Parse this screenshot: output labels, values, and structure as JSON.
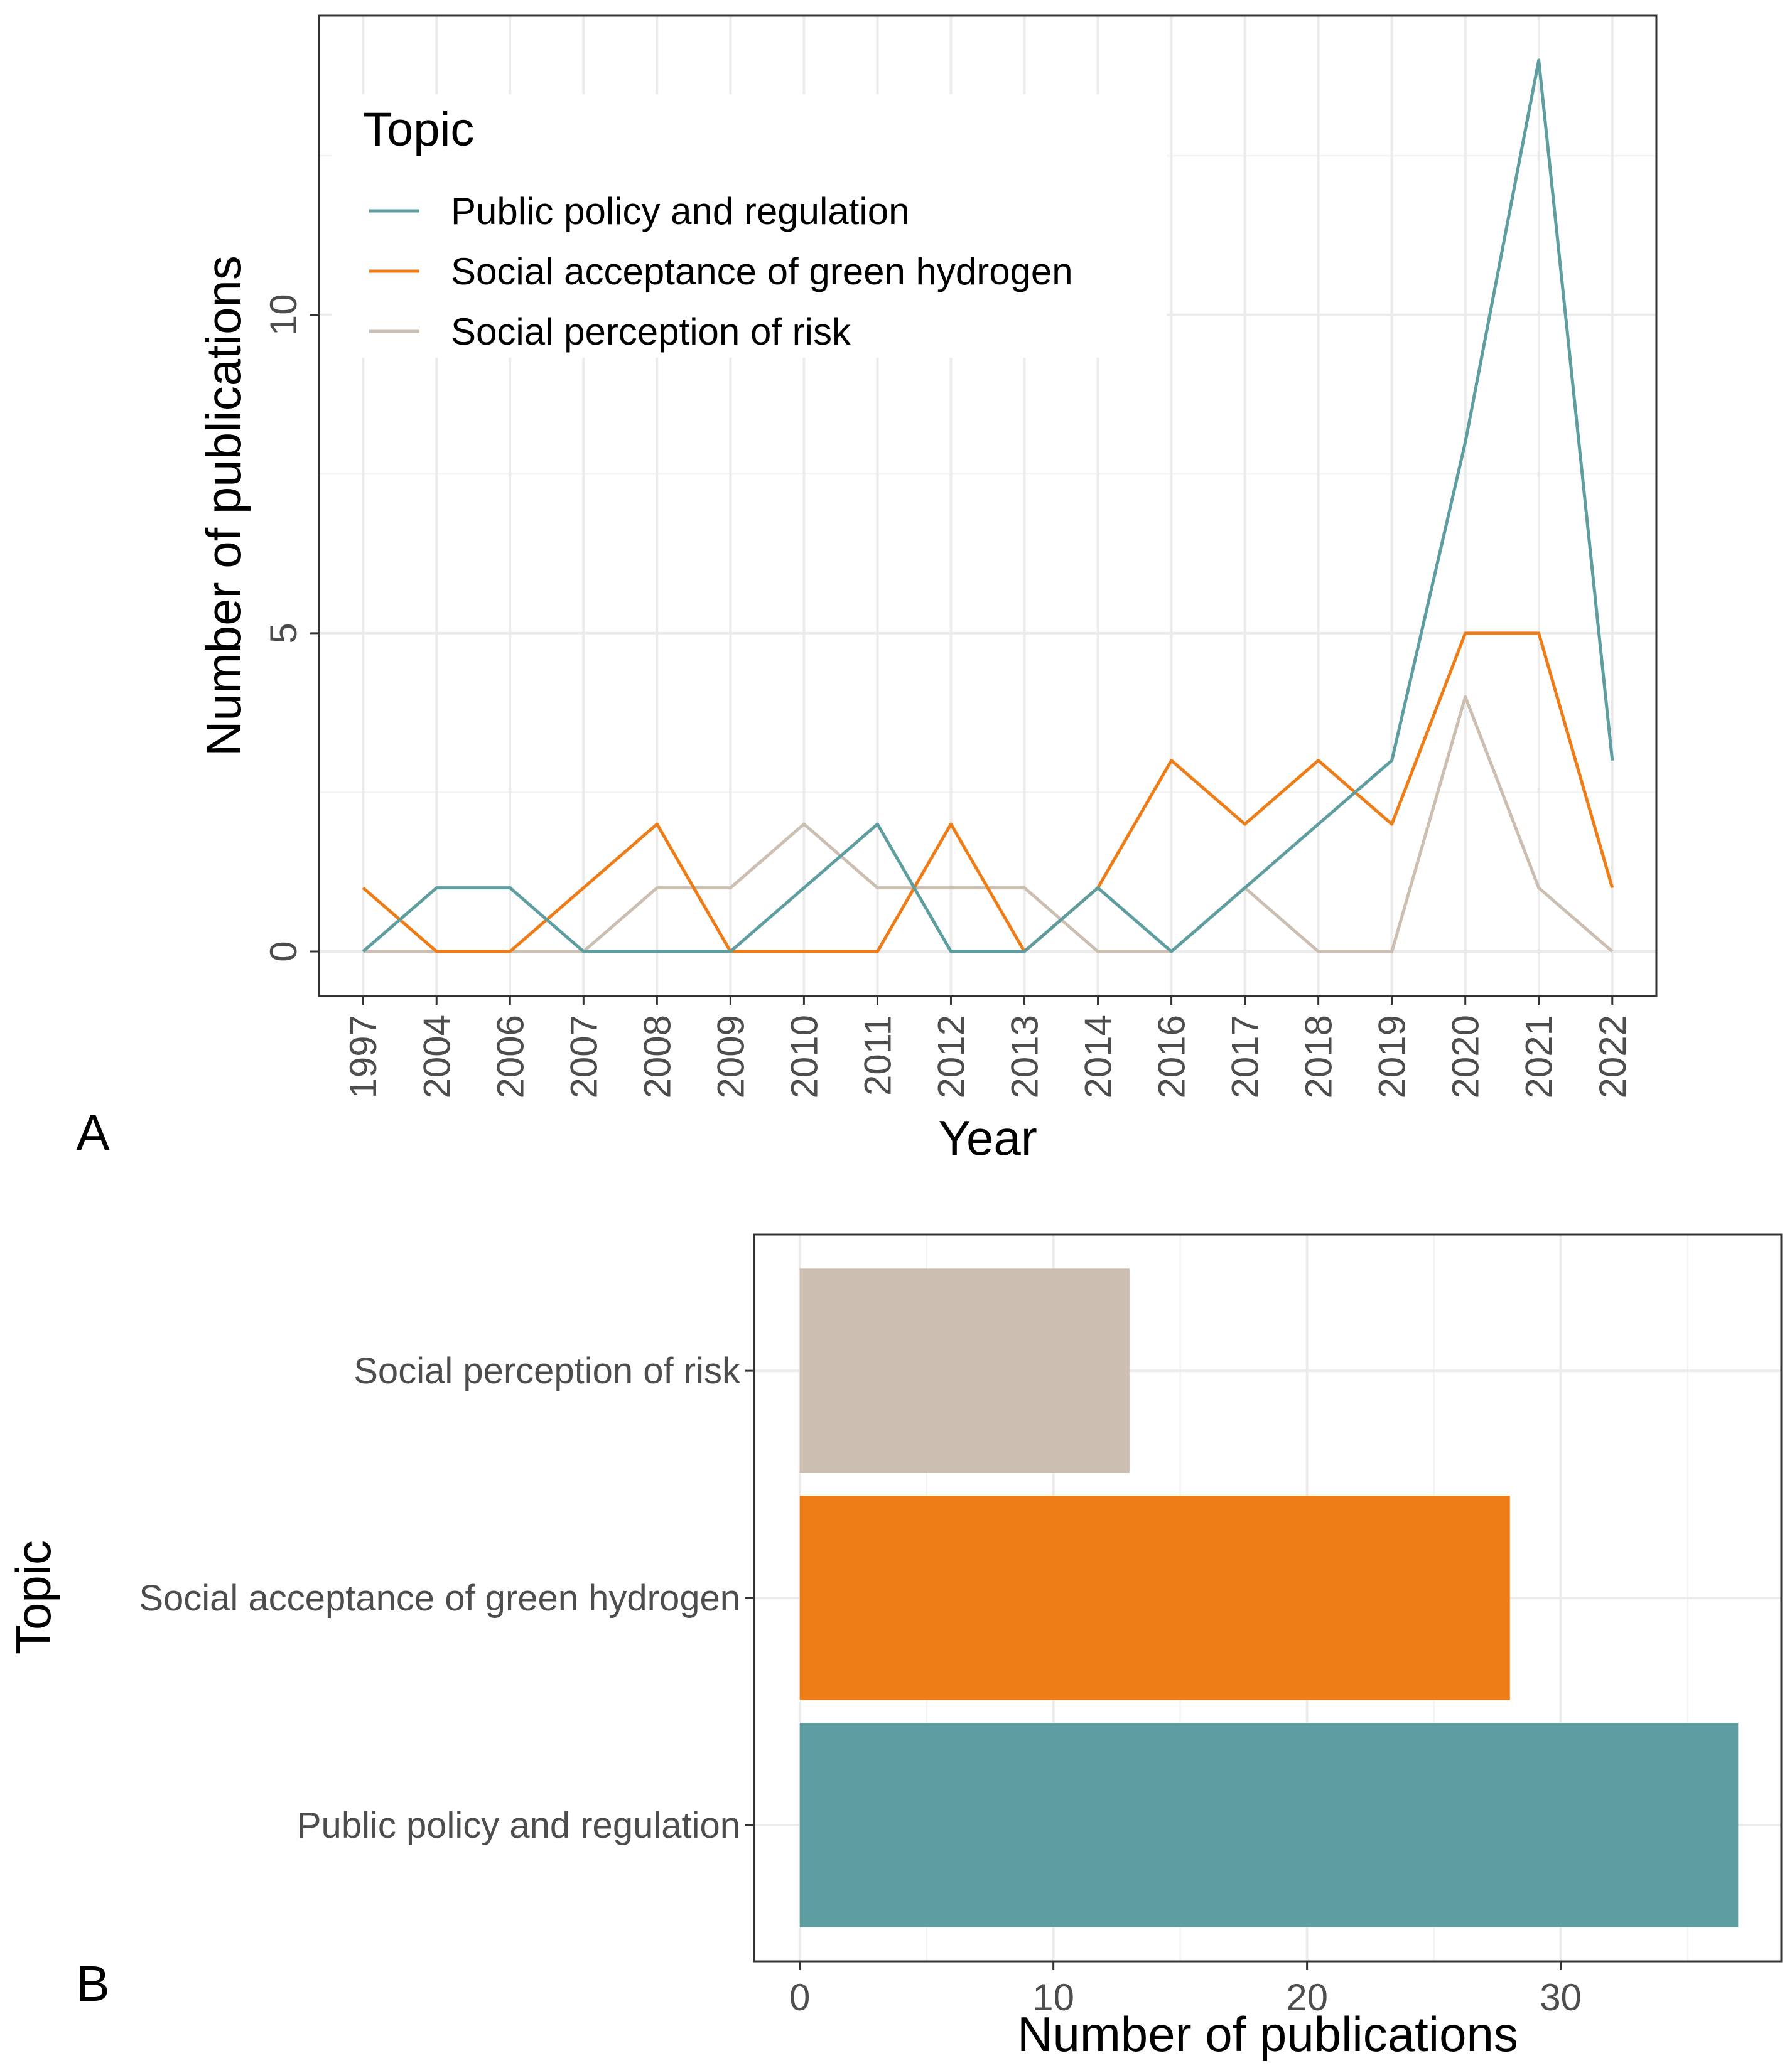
{
  "chart_data": [
    {
      "panel": "A",
      "type": "line",
      "xlabel": "Year",
      "ylabel": "Number of publications",
      "categories": [
        "1997",
        "2004",
        "2006",
        "2007",
        "2008",
        "2009",
        "2010",
        "2011",
        "2012",
        "2013",
        "2014",
        "2016",
        "2017",
        "2018",
        "2019",
        "2020",
        "2021",
        "2022"
      ],
      "ylim": [
        -0.7,
        14.7
      ],
      "y_ticks": [
        0,
        5,
        10
      ],
      "grid": true,
      "legend": {
        "title": "Topic",
        "position": "top-left"
      },
      "series": [
        {
          "name": "Public policy and regulation",
          "color": "#5f9ea0",
          "values": [
            0,
            1,
            1,
            0,
            0,
            0,
            1,
            2,
            0,
            0,
            1,
            0,
            1,
            2,
            3,
            8,
            14,
            3
          ]
        },
        {
          "name": "Social acceptance of green hydrogen",
          "color": "#ee7d18",
          "values": [
            1,
            0,
            0,
            1,
            2,
            0,
            0,
            0,
            2,
            0,
            1,
            3,
            2,
            3,
            2,
            5,
            5,
            1
          ]
        },
        {
          "name": "Social perception of risk",
          "color": "#ccbfb1",
          "values": [
            0,
            0,
            0,
            0,
            1,
            1,
            2,
            1,
            1,
            1,
            0,
            0,
            1,
            0,
            0,
            4,
            1,
            0
          ]
        }
      ]
    },
    {
      "panel": "B",
      "type": "bar",
      "orientation": "horizontal",
      "xlabel": "Number of publications",
      "ylabel": "Topic",
      "xlim": [
        -1.8,
        38.7
      ],
      "x_ticks": [
        0,
        10,
        20,
        30
      ],
      "grid": true,
      "categories": [
        "Public policy and regulation",
        "Social acceptance of green hydrogen",
        "Social perception of risk"
      ],
      "values": [
        37,
        28,
        13
      ],
      "colors": [
        "#5f9ea0",
        "#ee7d18",
        "#ccbfb1"
      ]
    }
  ]
}
